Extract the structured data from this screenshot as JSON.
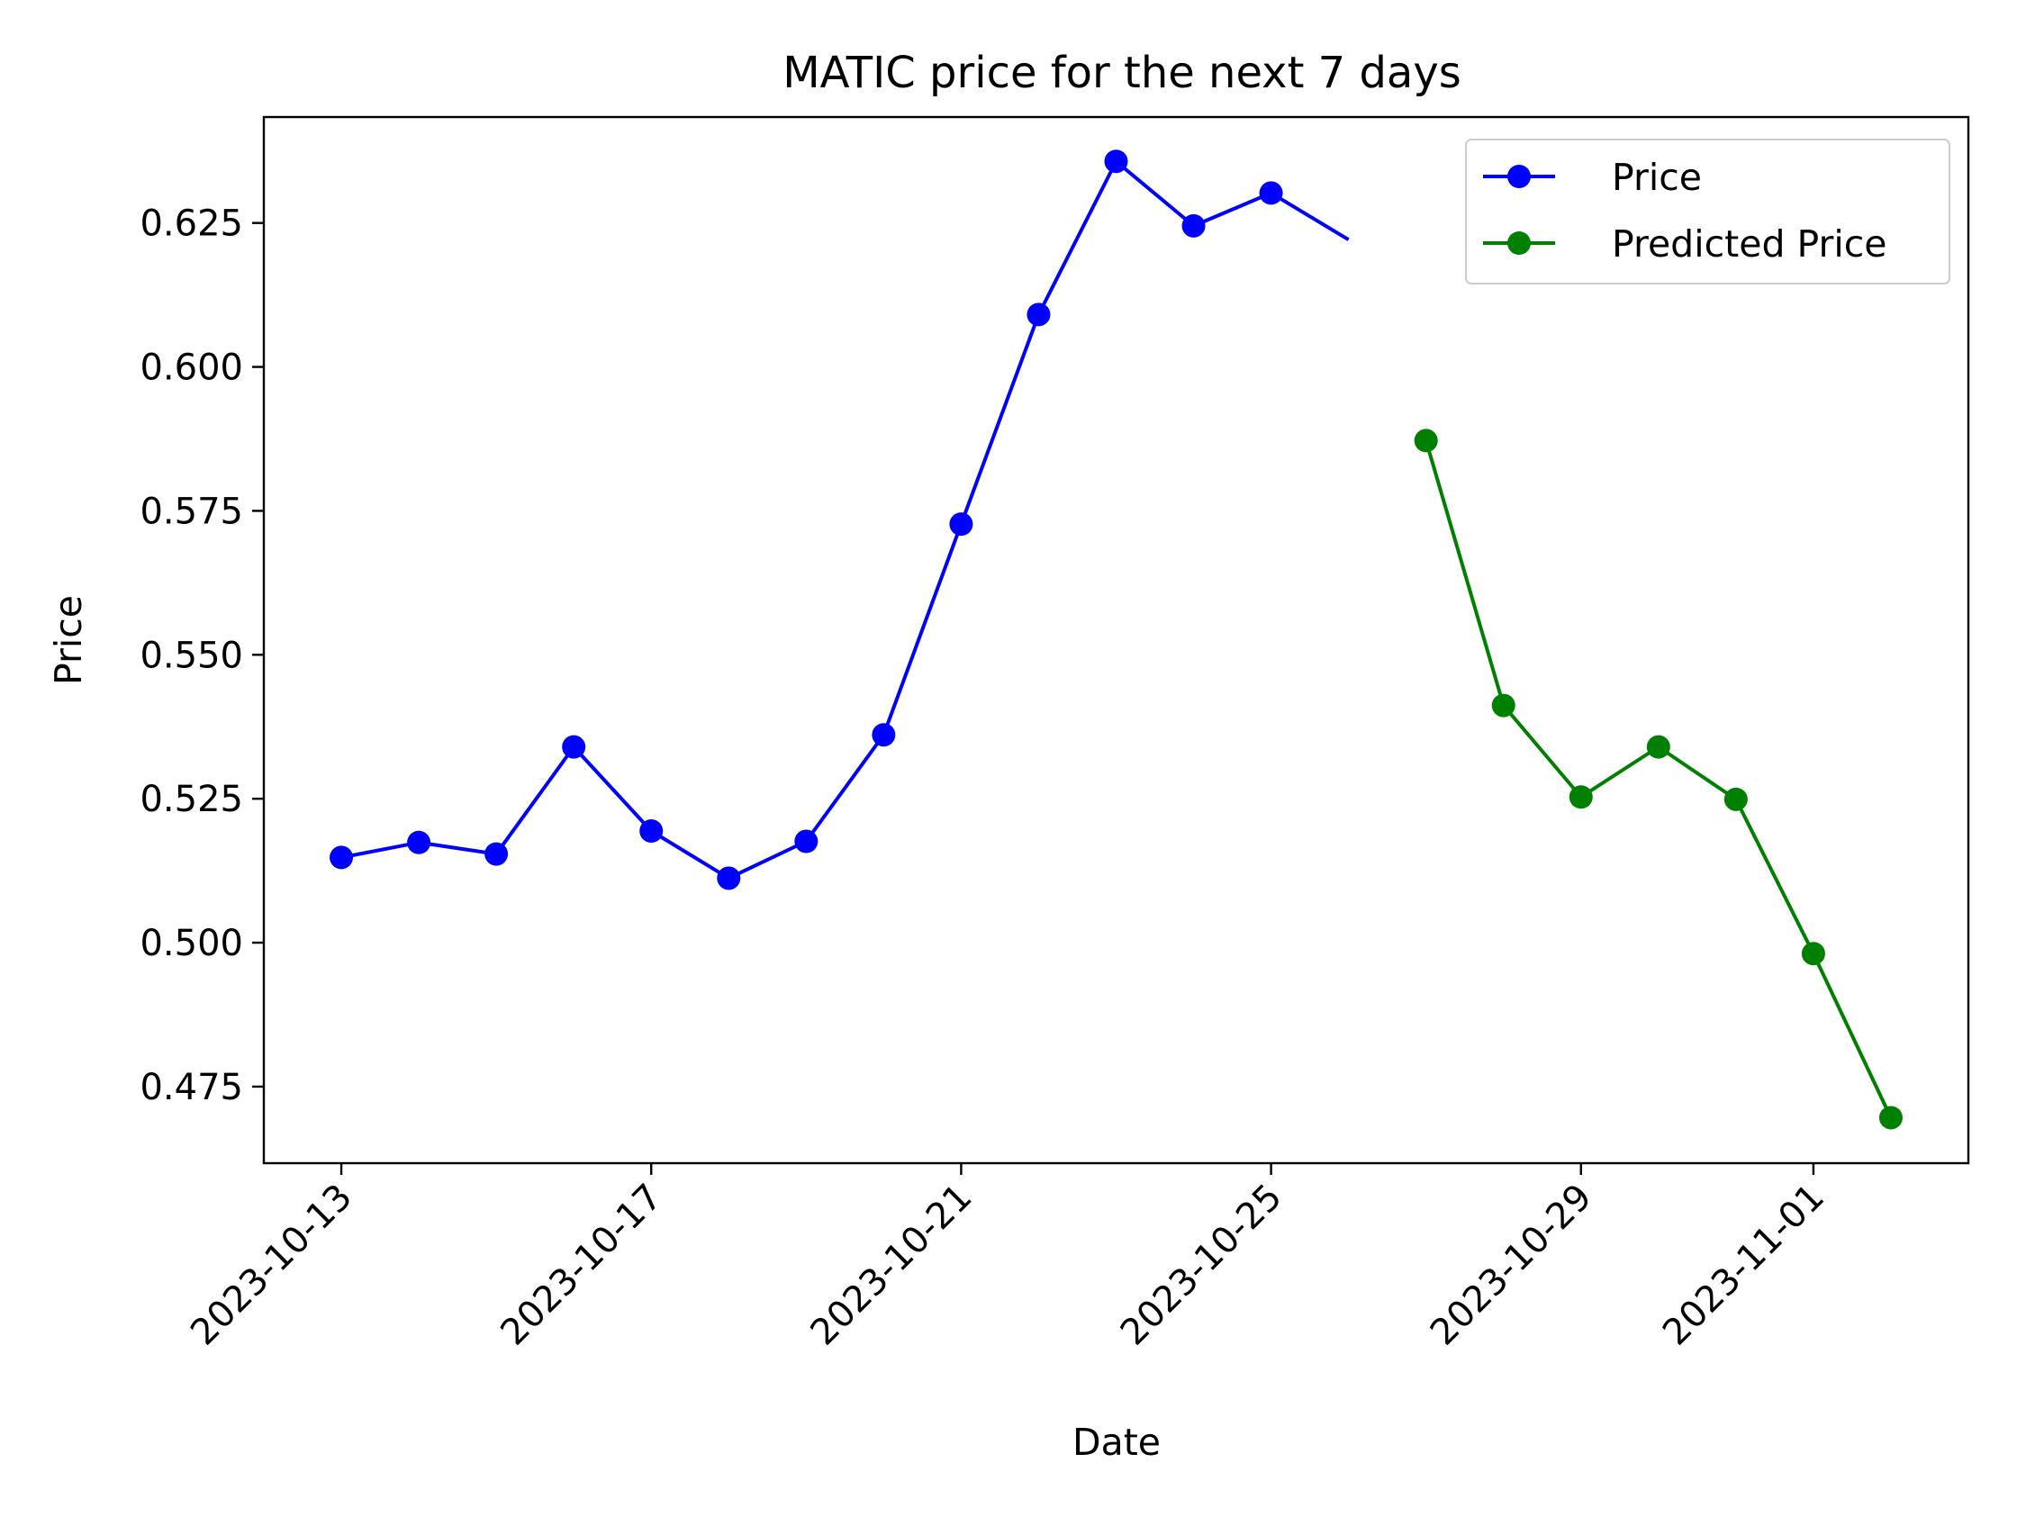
{
  "chart_data": {
    "type": "line",
    "title": "MATIC price for the next 7 days",
    "xlabel": "Date",
    "ylabel": "Price",
    "xlim": [
      "2023-10-12",
      "2023-11-03"
    ],
    "ylim": [
      0.4617,
      0.6434
    ],
    "xticks": [
      "2023-10-13",
      "2023-10-17",
      "2023-10-21",
      "2023-10-25",
      "2023-10-29",
      "2023-11-01"
    ],
    "yticks": [
      "0.475",
      "0.500",
      "0.525",
      "0.550",
      "0.575",
      "0.600",
      "0.625"
    ],
    "legend_position": "top-right",
    "grid": false,
    "series": [
      {
        "name": "Price",
        "color": "#0000ff",
        "marker": "circle",
        "points": [
          {
            "x": "2023-10-13",
            "y": 0.5148
          },
          {
            "x": "2023-10-14",
            "y": 0.5174
          },
          {
            "x": "2023-10-15",
            "y": 0.5154
          },
          {
            "x": "2023-10-16",
            "y": 0.534
          },
          {
            "x": "2023-10-17",
            "y": 0.5194
          },
          {
            "x": "2023-10-18",
            "y": 0.5112
          },
          {
            "x": "2023-10-19",
            "y": 0.5176
          },
          {
            "x": "2023-10-20",
            "y": 0.5361
          },
          {
            "x": "2023-10-21",
            "y": 0.5727
          },
          {
            "x": "2023-10-22",
            "y": 0.6091
          },
          {
            "x": "2023-10-23",
            "y": 0.6357
          },
          {
            "x": "2023-10-24",
            "y": 0.6245
          },
          {
            "x": "2023-10-25",
            "y": 0.6302
          },
          {
            "x": "2023-10-26",
            "y": 0.6221,
            "marker": false
          }
        ]
      },
      {
        "name": "Predicted Price",
        "color": "#008000",
        "marker": "circle",
        "points": [
          {
            "x": "2023-10-27",
            "y": 0.5872
          },
          {
            "x": "2023-10-28",
            "y": 0.5412
          },
          {
            "x": "2023-10-29",
            "y": 0.5253
          },
          {
            "x": "2023-10-30",
            "y": 0.534
          },
          {
            "x": "2023-10-31",
            "y": 0.5249
          },
          {
            "x": "2023-11-01",
            "y": 0.4981
          },
          {
            "x": "2023-11-02",
            "y": 0.4696
          }
        ]
      }
    ]
  }
}
